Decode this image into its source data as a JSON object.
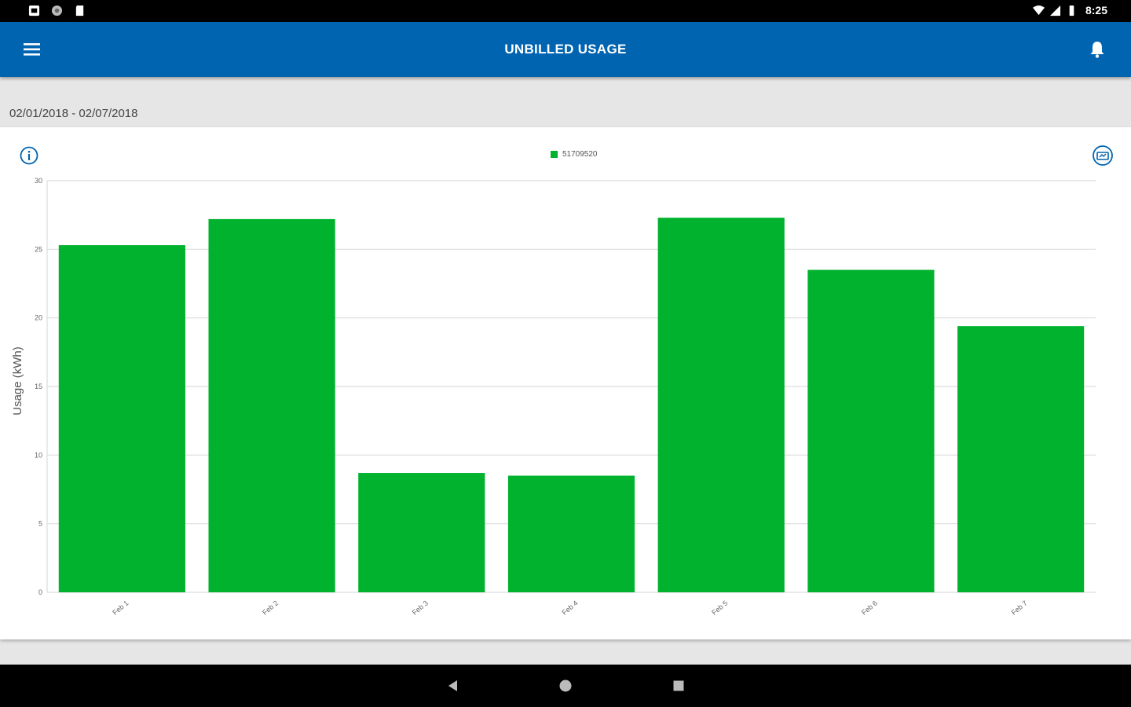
{
  "status_bar": {
    "time": "8:25",
    "left_icons": [
      "photo-icon",
      "circle-icon",
      "sd-card-icon"
    ],
    "right_icons": [
      "wifi-icon",
      "signal-icon",
      "battery-icon"
    ]
  },
  "app_bar": {
    "title": "UNBILLED USAGE",
    "menu_icon": "hamburger-icon",
    "bell_icon": "bell-icon"
  },
  "date_range": "02/01/2018 - 02/07/2018",
  "colors": {
    "app_bar": "#0064b1",
    "bar": "#00b22d",
    "grid": "#dddddd"
  },
  "chart_data": {
    "type": "bar",
    "legend": [
      "51709520"
    ],
    "categories": [
      "Feb 1",
      "Feb 2",
      "Feb 3",
      "Feb 4",
      "Feb 5",
      "Feb 6",
      "Feb 7"
    ],
    "series": [
      {
        "name": "51709520",
        "values": [
          25.3,
          27.2,
          8.7,
          8.5,
          27.3,
          23.5,
          19.4
        ]
      }
    ],
    "ylabel": "Usage (kWh)",
    "xlabel": "",
    "ylim": [
      0,
      30
    ],
    "yticks": [
      0,
      5,
      10,
      15,
      20,
      25,
      30
    ],
    "grid": true,
    "legend_position": "top-center"
  },
  "nav": {
    "back_icon": "back-triangle-icon",
    "home_icon": "home-circle-icon",
    "recents_icon": "recents-square-icon"
  }
}
